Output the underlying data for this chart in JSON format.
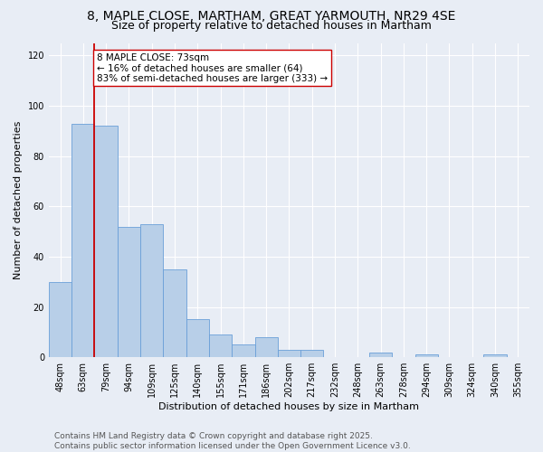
{
  "title_line1": "8, MAPLE CLOSE, MARTHAM, GREAT YARMOUTH, NR29 4SE",
  "title_line2": "Size of property relative to detached houses in Martham",
  "xlabel": "Distribution of detached houses by size in Martham",
  "ylabel": "Number of detached properties",
  "categories": [
    "48sqm",
    "63sqm",
    "79sqm",
    "94sqm",
    "109sqm",
    "125sqm",
    "140sqm",
    "155sqm",
    "171sqm",
    "186sqm",
    "202sqm",
    "217sqm",
    "232sqm",
    "248sqm",
    "263sqm",
    "278sqm",
    "294sqm",
    "309sqm",
    "324sqm",
    "340sqm",
    "355sqm"
  ],
  "values": [
    30,
    93,
    92,
    52,
    53,
    35,
    15,
    9,
    5,
    8,
    3,
    3,
    0,
    0,
    2,
    0,
    1,
    0,
    0,
    1,
    0
  ],
  "bar_color": "#b8cfe8",
  "bar_edge_color": "#6a9fd8",
  "vline_x_index": 1.5,
  "vline_color": "#cc0000",
  "annotation_text": "8 MAPLE CLOSE: 73sqm\n← 16% of detached houses are smaller (64)\n83% of semi-detached houses are larger (333) →",
  "annotation_box_color": "#ffffff",
  "annotation_box_edge": "#cc0000",
  "ylim": [
    0,
    125
  ],
  "yticks": [
    0,
    20,
    40,
    60,
    80,
    100,
    120
  ],
  "footer_line1": "Contains HM Land Registry data © Crown copyright and database right 2025.",
  "footer_line2": "Contains public sector information licensed under the Open Government Licence v3.0.",
  "background_color": "#e8edf5",
  "plot_background": "#e8edf5",
  "grid_color": "#ffffff",
  "title_fontsize": 10,
  "subtitle_fontsize": 9,
  "axis_label_fontsize": 8,
  "tick_fontsize": 7,
  "footer_fontsize": 6.5,
  "annotation_fontsize": 7.5
}
